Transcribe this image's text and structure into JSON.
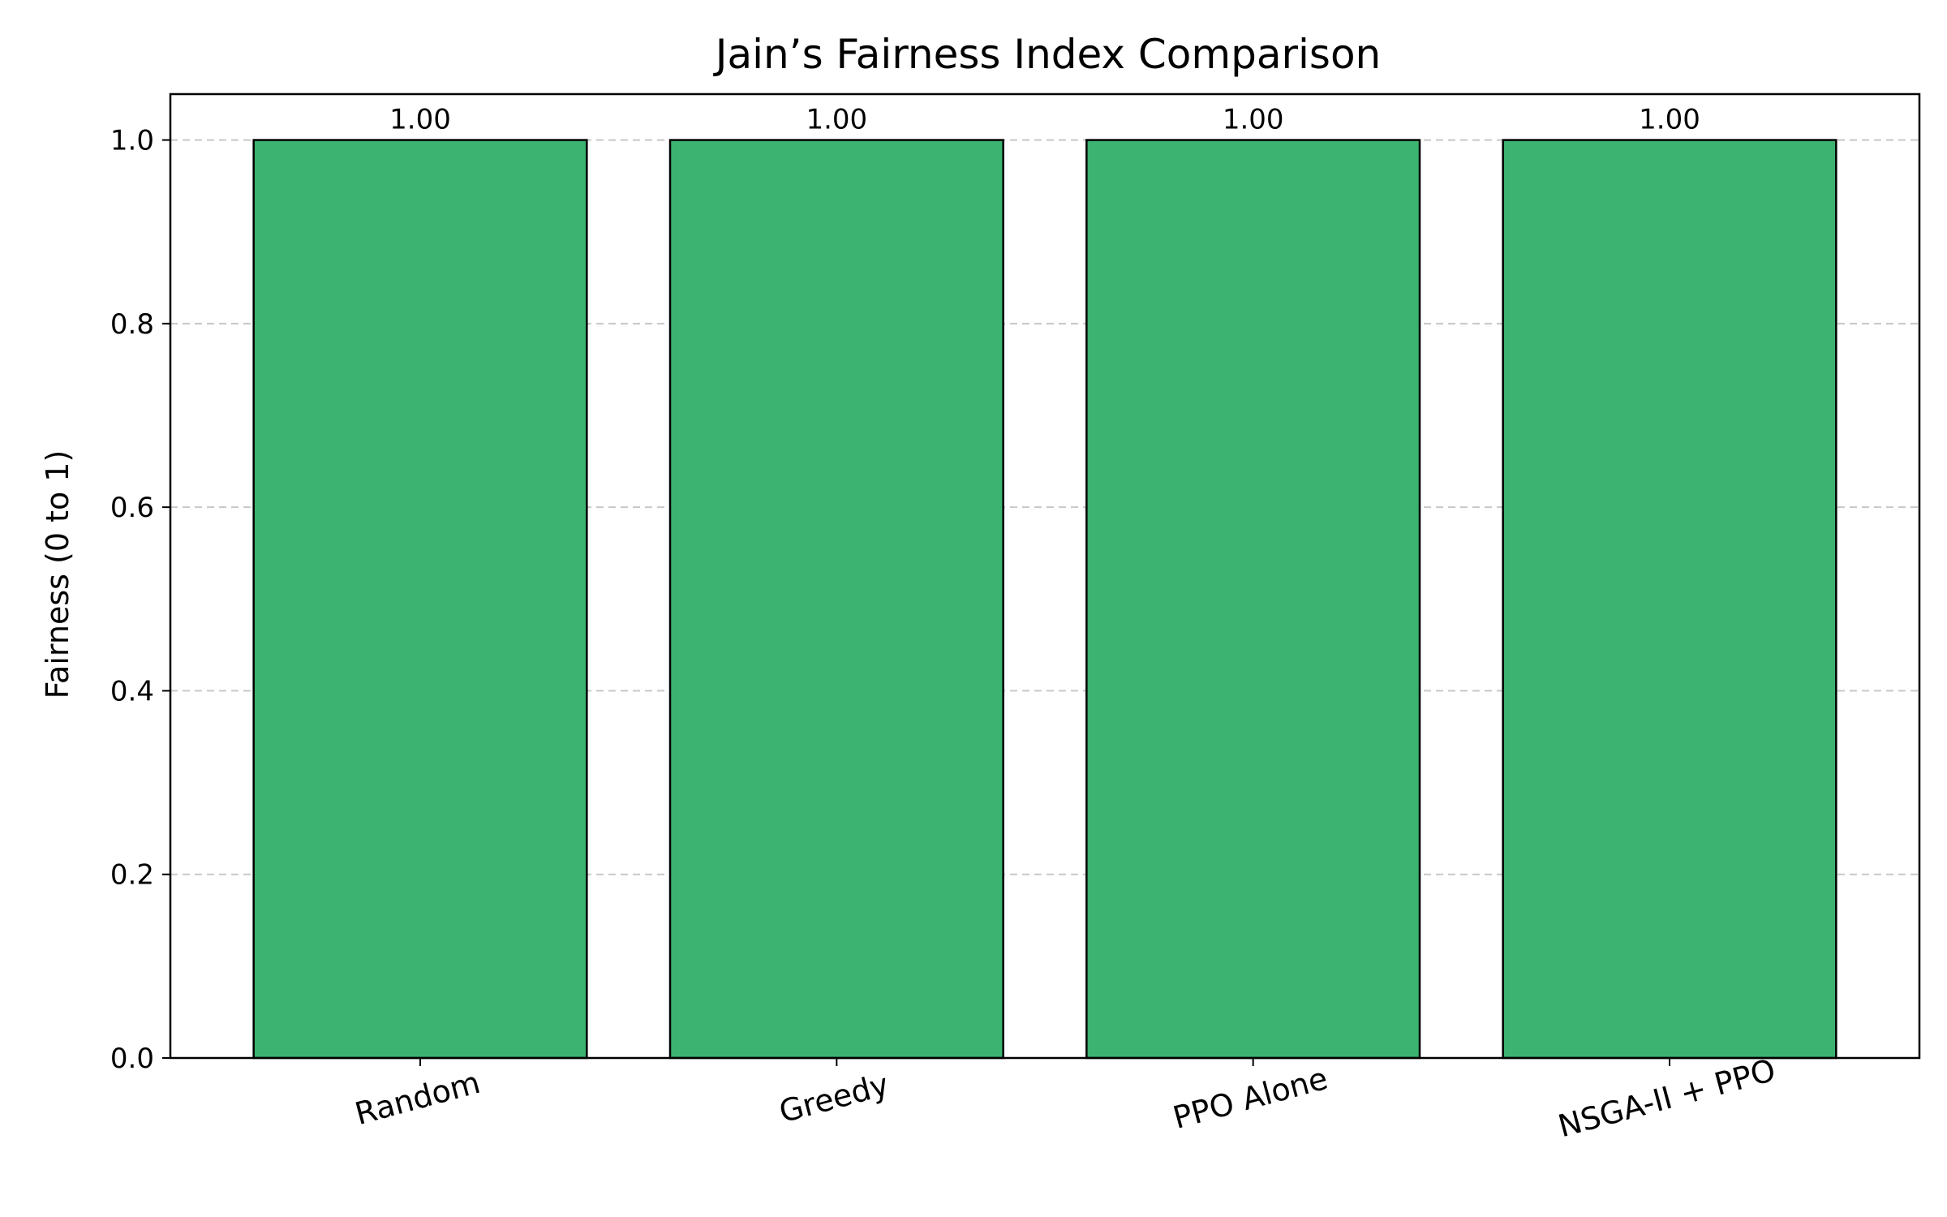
{
  "chart_data": {
    "type": "bar",
    "title": "Jain’s Fairness Index Comparison",
    "xlabel": "",
    "ylabel": "Fairness (0 to 1)",
    "categories": [
      "Random",
      "Greedy",
      "PPO Alone",
      "NSGA-II + PPO"
    ],
    "values": [
      1.0,
      1.0,
      1.0,
      1.0
    ],
    "value_labels": [
      "1.00",
      "1.00",
      "1.00",
      "1.00"
    ],
    "ylim": [
      0,
      1.05
    ],
    "yticks": [
      0.0,
      0.2,
      0.4,
      0.6,
      0.8,
      1.0
    ],
    "ytick_labels": [
      "0.0",
      "0.2",
      "0.4",
      "0.6",
      "0.8",
      "1.0"
    ],
    "grid": "y",
    "legend": "none",
    "colors": {
      "bar": "#3cb371",
      "bar_edge": "#000000",
      "grid": "#c8c8c8",
      "axis": "#000000",
      "text": "#000000"
    }
  }
}
